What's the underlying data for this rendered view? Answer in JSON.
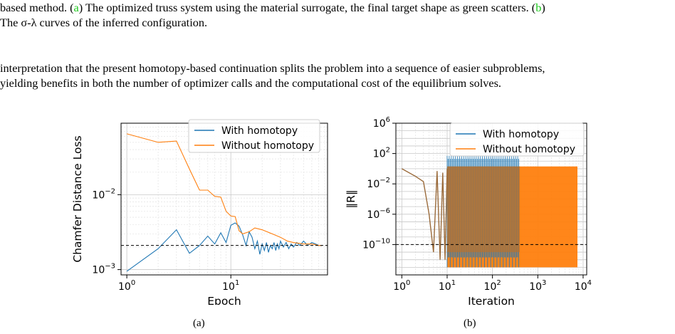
{
  "caption": {
    "line1_pre": "based method. (",
    "label_a": "a",
    "line1_mid": ") The optimized truss system using the material surrogate, the final target shape as green scatters. (",
    "label_b": "b",
    "line1_post": ")",
    "line2": "The σ-λ curves of the inferred configuration."
  },
  "body": {
    "line1": "interpretation that the present homotopy-based continuation splits the problem into a sequence of easier subproblems,",
    "line2": "yielding benefits in both the number of optimizer calls and the computational cost of the equilibrium solves."
  },
  "subfigures": {
    "a": "(a)",
    "b": "(b)"
  },
  "colors": {
    "with": "#1f77b4",
    "without": "#ff7f0e",
    "link": "#19c819"
  },
  "chart_data": [
    {
      "type": "line",
      "xlabel": "Epoch",
      "ylabel": "Chamfer Distance Loss",
      "xscale": "log",
      "yscale": "log",
      "xlim": [
        0.88,
        85
      ],
      "ylim": [
        0.00085,
        0.09
      ],
      "xticks": [
        {
          "v": 1,
          "b": "10",
          "e": "0"
        },
        {
          "v": 10,
          "b": "10",
          "e": "1"
        }
      ],
      "yticks": [
        {
          "v": 0.001,
          "b": "10",
          "e": "−3"
        },
        {
          "v": 0.01,
          "b": "10",
          "e": "−2"
        }
      ],
      "grid": true,
      "legend": "top-right",
      "threshold": 0.0021,
      "series": [
        {
          "name": "With homotopy",
          "color": "#1f77b4",
          "x": [
            1,
            2,
            3,
            4,
            5,
            6,
            7,
            8,
            9,
            10,
            11,
            12,
            13,
            14,
            15,
            16,
            17,
            18,
            19,
            20,
            21,
            22,
            23,
            24,
            25,
            26,
            27,
            28,
            29,
            30,
            32,
            34,
            36,
            38,
            40,
            43,
            46,
            50,
            55,
            60,
            65,
            70,
            75
          ],
          "y": [
            0.00095,
            0.0019,
            0.0034,
            0.00165,
            0.0021,
            0.0028,
            0.0022,
            0.0031,
            0.0023,
            0.0039,
            0.0042,
            0.0038,
            0.0029,
            0.0021,
            0.0032,
            0.0027,
            0.0019,
            0.0024,
            0.0016,
            0.0022,
            0.0018,
            0.0023,
            0.0017,
            0.0021,
            0.0019,
            0.0023,
            0.0018,
            0.0022,
            0.0019,
            0.0024,
            0.002,
            0.0023,
            0.0019,
            0.0022,
            0.002,
            0.0023,
            0.0021,
            0.0024,
            0.0021,
            0.0023,
            0.0022,
            0.0021,
            0.0021
          ]
        },
        {
          "name": "Without homotopy",
          "color": "#ff7f0e",
          "x": [
            1,
            2,
            3,
            4,
            5,
            6,
            7,
            8,
            9,
            10,
            11,
            12,
            13,
            15,
            17,
            20,
            25,
            30,
            35,
            40,
            50,
            60,
            70,
            75
          ],
          "y": [
            0.065,
            0.05,
            0.052,
            0.022,
            0.0115,
            0.0115,
            0.0095,
            0.0093,
            0.006,
            0.0052,
            0.0051,
            0.0033,
            0.003,
            0.0032,
            0.0036,
            0.0034,
            0.003,
            0.0027,
            0.0024,
            0.0023,
            0.0022,
            0.0022,
            0.0021,
            0.0021
          ]
        }
      ]
    },
    {
      "type": "area",
      "xlabel": "Iteration",
      "ylabel": "‖R‖",
      "xscale": "log",
      "yscale": "log",
      "xlim": [
        0.74,
        12000
      ],
      "ylim": [
        1e-14,
        1000000.0
      ],
      "xticks": [
        {
          "v": 1,
          "b": "10",
          "e": "0"
        },
        {
          "v": 10,
          "b": "10",
          "e": "1"
        },
        {
          "v": 100,
          "b": "10",
          "e": "2"
        },
        {
          "v": 1000,
          "b": "10",
          "e": "3"
        },
        {
          "v": 10000,
          "b": "10",
          "e": "4"
        }
      ],
      "yticks": [
        {
          "v": 1e-10,
          "b": "10",
          "e": "−10"
        },
        {
          "v": 1e-06,
          "b": "10",
          "e": "−6"
        },
        {
          "v": 0.01,
          "b": "10",
          "e": "−2"
        },
        {
          "v": 100,
          "b": "10",
          "e": "2"
        },
        {
          "v": 1000000.0,
          "b": "10",
          "e": "6"
        }
      ],
      "grid": true,
      "legend": "top-right",
      "threshold": 1e-10,
      "series": [
        {
          "name": "With homotopy",
          "color": "#1f77b4",
          "band_x": [
            10,
            400
          ],
          "band_y": [
            1e-13,
            50
          ],
          "x": [
            1,
            2,
            3,
            4,
            5,
            6,
            7,
            8,
            9,
            10
          ],
          "y": [
            1,
            0.1,
            0.02,
            1e-06,
            1e-11,
            0.5,
            1e-12,
            0.3,
            1e-12,
            1
          ]
        },
        {
          "name": "Without homotopy",
          "color": "#ff7f0e",
          "band_x": [
            10,
            7500
          ],
          "band_y": [
            1e-13,
            2
          ],
          "x": [
            1,
            2,
            3,
            4,
            5,
            6,
            7,
            8,
            9,
            10
          ],
          "y": [
            1,
            0.1,
            0.02,
            1e-06,
            1e-11,
            0.5,
            1e-12,
            0.3,
            1e-12,
            1
          ]
        }
      ]
    }
  ]
}
